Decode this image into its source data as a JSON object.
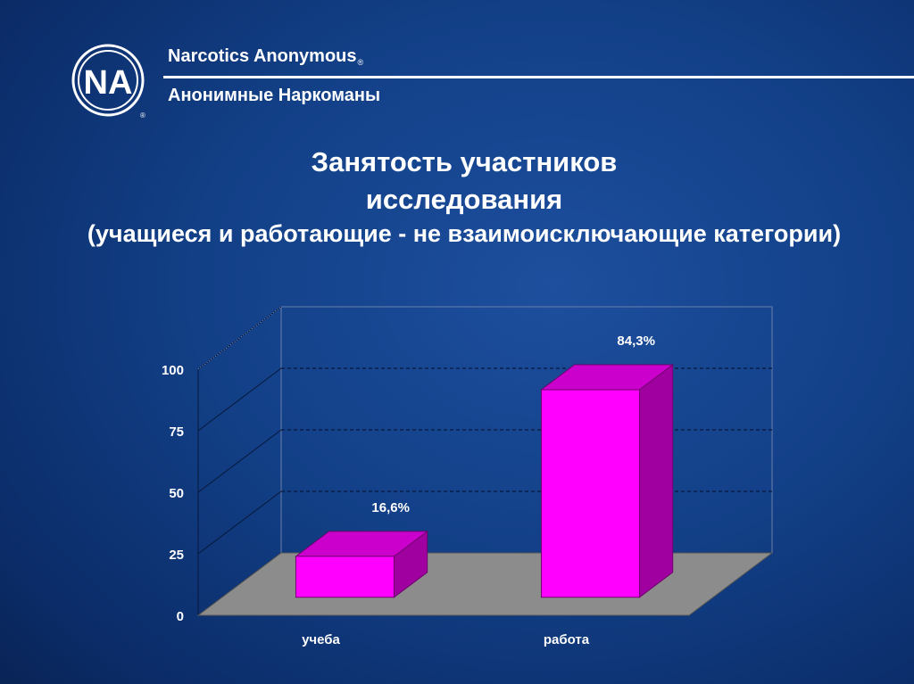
{
  "header": {
    "org_en": "Narcotics Anonymous",
    "registered": "®",
    "org_ru": "Анонимные Наркоманы",
    "logo_text": "NA"
  },
  "title": {
    "line1": "Занятость участников",
    "line2": "исследования",
    "line3": "(учащиеся и работающие - не взаимоисключающие категории)"
  },
  "chart_data": {
    "type": "bar",
    "style": "3d",
    "title": "Занятость участников исследования",
    "categories": [
      "учеба",
      "работа"
    ],
    "values": [
      16.6,
      84.3
    ],
    "data_labels": [
      "16,6%",
      "84,3%"
    ],
    "yticks": [
      0,
      25,
      50,
      75,
      100
    ],
    "ylim": [
      0,
      100
    ],
    "xlabel": "",
    "ylabel": "",
    "grid": true,
    "colors": {
      "bar_front": "#ff00ff",
      "bar_top": "#cc00cc",
      "bar_side": "#a000a0",
      "floor": "#8c8c8c"
    }
  }
}
